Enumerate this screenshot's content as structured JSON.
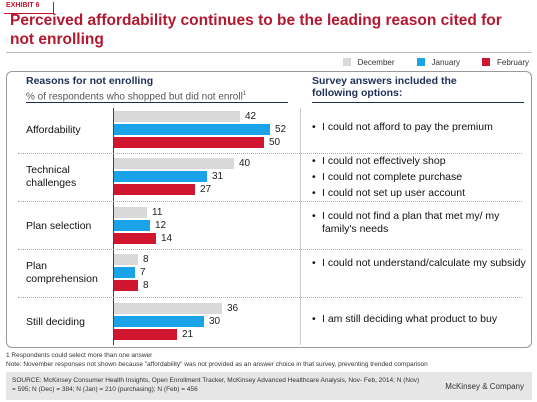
{
  "exhibit_label": "EXHIBIT 6",
  "title": "Perceived affordability  continues to be the leading reason cited for not enrolling",
  "legend": [
    {
      "name": "December",
      "color": "#d9d9d9"
    },
    {
      "name": "January",
      "color": "#1aa3e8"
    },
    {
      "name": "February",
      "color": "#d0152f"
    }
  ],
  "left_heading": "Reasons for not enrolling",
  "left_subheading": "% of respondents who shopped but did not enroll",
  "left_subheading_sup": "1",
  "right_heading_line1": "Survey answers included the",
  "right_heading_line2": "following options:",
  "chart_data": {
    "type": "bar",
    "orientation": "horizontal",
    "title": "Reasons for not enrolling",
    "subtitle": "% of respondents who shopped but did not enroll",
    "categories": [
      [
        "Affordability"
      ],
      [
        "Technical",
        "challenges"
      ],
      [
        "Plan selection"
      ],
      [
        "Plan",
        "comprehension"
      ],
      [
        "Still deciding"
      ]
    ],
    "series": [
      {
        "name": "December",
        "color": "#d9d9d9",
        "values": [
          42,
          40,
          11,
          8,
          36
        ]
      },
      {
        "name": "January",
        "color": "#1aa3e8",
        "values": [
          52,
          31,
          12,
          7,
          30
        ]
      },
      {
        "name": "February",
        "color": "#d0152f",
        "values": [
          50,
          27,
          14,
          8,
          21
        ]
      }
    ],
    "xlim": [
      0,
      60
    ],
    "grid": false,
    "legend_position": "top-right"
  },
  "options": [
    [
      "I could not afford to pay the premium"
    ],
    [
      "I could not effectively shop",
      "I could not complete purchase",
      "I could not set up user account"
    ],
    [
      "I could not find a plan that met my/ my family's needs"
    ],
    [
      "I could not understand/calculate my subsidy"
    ],
    [
      "I am still deciding what product to buy"
    ]
  ],
  "footnote1": "1 Respondents could select more than one answer",
  "footnote2": "Note: November responses not shown because \"affordability\" was not provided as an answer choice in that survey, preventing trended comparison",
  "source": "SOURCE: McKinsey Consumer Health Insights, Open Enrollment Tracker, McKinsey Advanced Healthcare Analysis, Nov- Feb, 2014; N (Nov) = 595; N (Dec) = 384; N (Jan) = 210 (purchasing); N (Feb) = 456",
  "brand": "McKinsey & Company"
}
